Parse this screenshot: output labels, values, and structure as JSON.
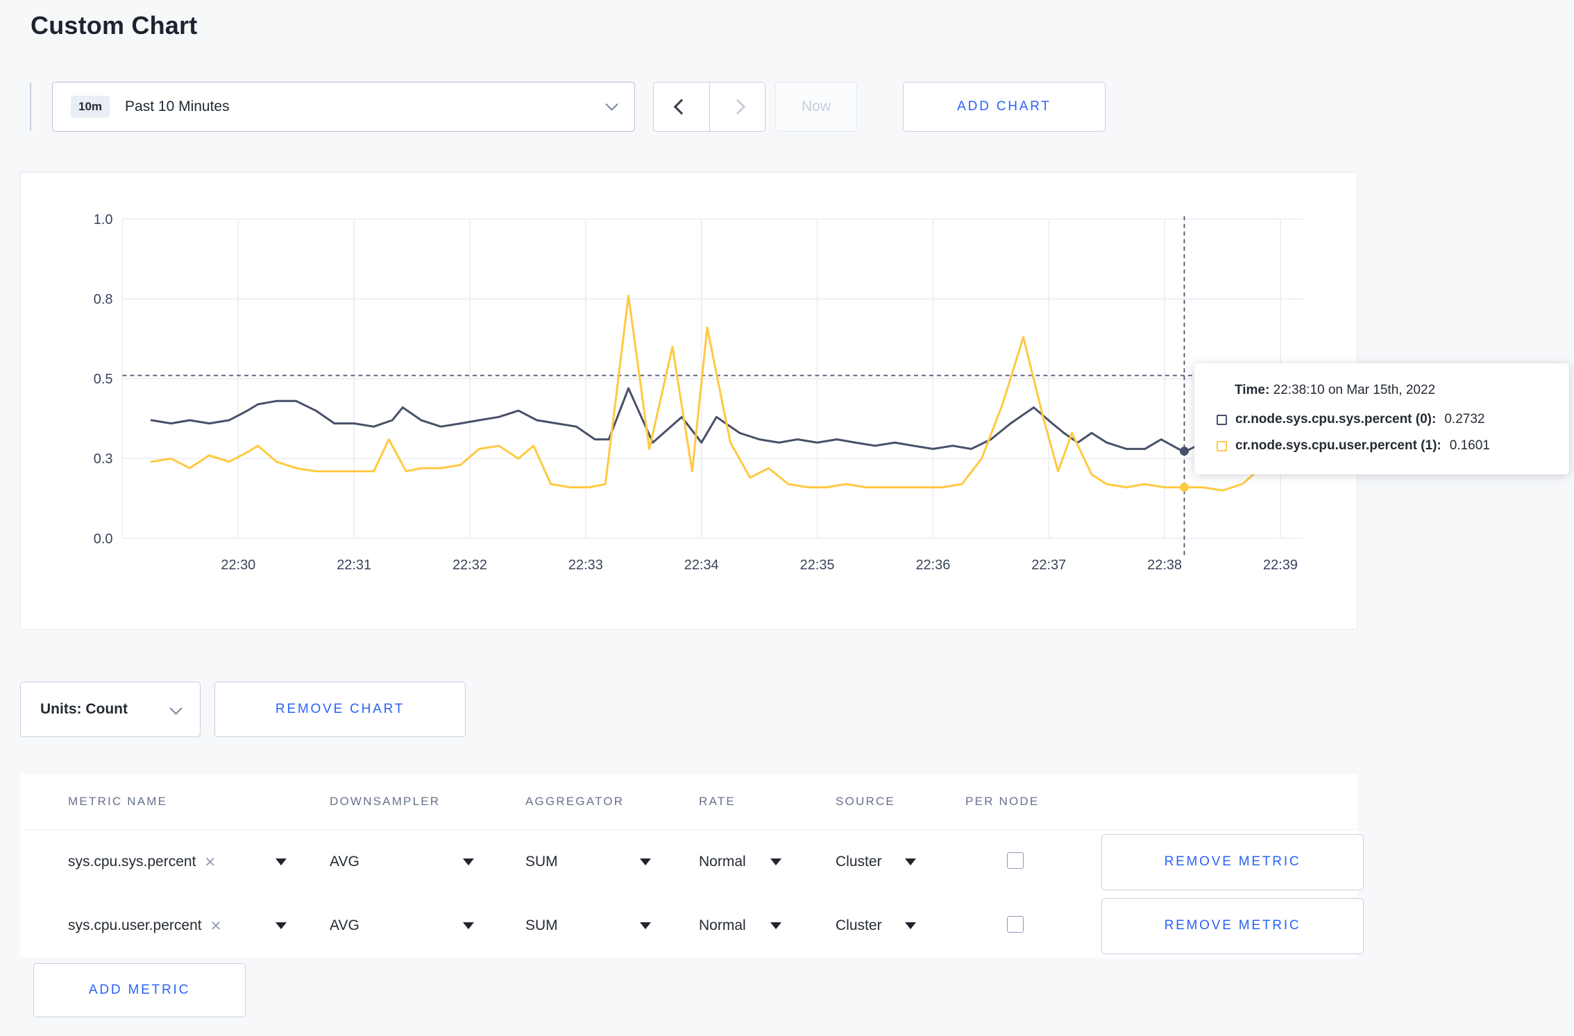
{
  "page": {
    "title": "Custom Chart"
  },
  "icons": {
    "clear": "✕"
  },
  "colors": {
    "accent_blue": "#2a62f5",
    "series_sys": "#475068",
    "series_user": "#ffc940",
    "page_bg": "#f7f8fa"
  },
  "toolbar": {
    "time_badge": "10m",
    "time_label": "Past 10 Minutes",
    "now_label": "Now",
    "add_chart_label": "ADD CHART"
  },
  "controls": {
    "units_label": "Units: Count",
    "remove_chart_label": "REMOVE CHART",
    "add_metric_label": "ADD METRIC"
  },
  "tooltip": {
    "time_label": "Time:",
    "time_value": "22:38:10 on Mar 15th, 2022",
    "rows": [
      {
        "name": "cr.node.sys.cpu.sys.percent (0):",
        "value": "0.2732"
      },
      {
        "name": "cr.node.sys.cpu.user.percent (1):",
        "value": "0.1601"
      }
    ]
  },
  "table": {
    "headers": [
      "METRIC NAME",
      "DOWNSAMPLER",
      "AGGREGATOR",
      "RATE",
      "SOURCE",
      "PER NODE"
    ],
    "rows": [
      {
        "metric": "sys.cpu.sys.percent",
        "downsampler": "AVG",
        "aggregator": "SUM",
        "rate": "Normal",
        "source": "Cluster",
        "per_node_checked": false,
        "remove_label": "REMOVE METRIC"
      },
      {
        "metric": "sys.cpu.user.percent",
        "downsampler": "AVG",
        "aggregator": "SUM",
        "rate": "Normal",
        "source": "Cluster",
        "per_node_checked": false,
        "remove_label": "REMOVE METRIC"
      }
    ]
  },
  "chart_data": {
    "type": "line",
    "title": "",
    "xlabel": "",
    "ylabel": "",
    "x_unit": "minutes since 22:29:00",
    "x_domain": [
      0,
      10.2
    ],
    "y_domain": [
      0,
      1
    ],
    "grid": true,
    "legend_position": "hover-tooltip",
    "x_ticks": [
      {
        "x": 1,
        "label": "22:30"
      },
      {
        "x": 2,
        "label": "22:31"
      },
      {
        "x": 3,
        "label": "22:32"
      },
      {
        "x": 4,
        "label": "22:33"
      },
      {
        "x": 5,
        "label": "22:34"
      },
      {
        "x": 6,
        "label": "22:35"
      },
      {
        "x": 7,
        "label": "22:36"
      },
      {
        "x": 8,
        "label": "22:37"
      },
      {
        "x": 9,
        "label": "22:38"
      },
      {
        "x": 10,
        "label": "22:39"
      }
    ],
    "y_ticks": [
      {
        "v": 0,
        "label": "0.0"
      },
      {
        "v": 0.25,
        "label": "0.3"
      },
      {
        "v": 0.5,
        "label": "0.5"
      },
      {
        "v": 0.75,
        "label": "0.8"
      },
      {
        "v": 1,
        "label": "1.0"
      }
    ],
    "series": [
      {
        "name": "cr.node.sys.cpu.sys.percent",
        "color": "#475068",
        "points": [
          [
            0.25,
            0.37
          ],
          [
            0.42,
            0.36
          ],
          [
            0.58,
            0.37
          ],
          [
            0.75,
            0.36
          ],
          [
            0.92,
            0.37
          ],
          [
            1.08,
            0.4
          ],
          [
            1.17,
            0.42
          ],
          [
            1.33,
            0.43
          ],
          [
            1.5,
            0.43
          ],
          [
            1.67,
            0.4
          ],
          [
            1.83,
            0.36
          ],
          [
            2.0,
            0.36
          ],
          [
            2.17,
            0.35
          ],
          [
            2.33,
            0.37
          ],
          [
            2.42,
            0.41
          ],
          [
            2.58,
            0.37
          ],
          [
            2.75,
            0.35
          ],
          [
            2.92,
            0.36
          ],
          [
            3.08,
            0.37
          ],
          [
            3.25,
            0.38
          ],
          [
            3.42,
            0.4
          ],
          [
            3.58,
            0.37
          ],
          [
            3.75,
            0.36
          ],
          [
            3.92,
            0.35
          ],
          [
            4.08,
            0.31
          ],
          [
            4.2,
            0.31
          ],
          [
            4.37,
            0.47
          ],
          [
            4.58,
            0.3
          ],
          [
            4.83,
            0.38
          ],
          [
            5.0,
            0.3
          ],
          [
            5.13,
            0.38
          ],
          [
            5.33,
            0.33
          ],
          [
            5.5,
            0.31
          ],
          [
            5.67,
            0.3
          ],
          [
            5.83,
            0.31
          ],
          [
            6.0,
            0.3
          ],
          [
            6.17,
            0.31
          ],
          [
            6.33,
            0.3
          ],
          [
            6.5,
            0.29
          ],
          [
            6.67,
            0.3
          ],
          [
            6.83,
            0.29
          ],
          [
            7.0,
            0.28
          ],
          [
            7.17,
            0.29
          ],
          [
            7.33,
            0.28
          ],
          [
            7.5,
            0.31
          ],
          [
            7.67,
            0.36
          ],
          [
            7.87,
            0.41
          ],
          [
            8.03,
            0.36
          ],
          [
            8.13,
            0.33
          ],
          [
            8.25,
            0.3
          ],
          [
            8.37,
            0.33
          ],
          [
            8.5,
            0.3
          ],
          [
            8.67,
            0.28
          ],
          [
            8.83,
            0.28
          ],
          [
            8.97,
            0.31
          ],
          [
            9.17,
            0.27
          ],
          [
            9.33,
            0.3
          ],
          [
            9.5,
            0.3
          ],
          [
            9.67,
            0.29
          ],
          [
            9.83,
            0.3
          ],
          [
            10.03,
            0.31
          ]
        ]
      },
      {
        "name": "cr.node.sys.cpu.user.percent",
        "color": "#ffc940",
        "points": [
          [
            0.25,
            0.24
          ],
          [
            0.42,
            0.25
          ],
          [
            0.58,
            0.22
          ],
          [
            0.75,
            0.26
          ],
          [
            0.92,
            0.24
          ],
          [
            1.08,
            0.27
          ],
          [
            1.17,
            0.29
          ],
          [
            1.33,
            0.24
          ],
          [
            1.5,
            0.22
          ],
          [
            1.67,
            0.21
          ],
          [
            1.83,
            0.21
          ],
          [
            2.0,
            0.21
          ],
          [
            2.17,
            0.21
          ],
          [
            2.3,
            0.31
          ],
          [
            2.45,
            0.21
          ],
          [
            2.58,
            0.22
          ],
          [
            2.75,
            0.22
          ],
          [
            2.92,
            0.23
          ],
          [
            3.08,
            0.28
          ],
          [
            3.25,
            0.29
          ],
          [
            3.42,
            0.25
          ],
          [
            3.55,
            0.29
          ],
          [
            3.7,
            0.17
          ],
          [
            3.87,
            0.16
          ],
          [
            4.03,
            0.16
          ],
          [
            4.17,
            0.17
          ],
          [
            4.37,
            0.76
          ],
          [
            4.55,
            0.28
          ],
          [
            4.75,
            0.6
          ],
          [
            4.92,
            0.21
          ],
          [
            5.05,
            0.66
          ],
          [
            5.25,
            0.3
          ],
          [
            5.42,
            0.19
          ],
          [
            5.58,
            0.22
          ],
          [
            5.75,
            0.17
          ],
          [
            5.92,
            0.16
          ],
          [
            6.08,
            0.16
          ],
          [
            6.25,
            0.17
          ],
          [
            6.42,
            0.16
          ],
          [
            6.58,
            0.16
          ],
          [
            6.75,
            0.16
          ],
          [
            6.92,
            0.16
          ],
          [
            7.08,
            0.16
          ],
          [
            7.25,
            0.17
          ],
          [
            7.42,
            0.25
          ],
          [
            7.6,
            0.42
          ],
          [
            7.78,
            0.63
          ],
          [
            7.95,
            0.38
          ],
          [
            8.08,
            0.21
          ],
          [
            8.2,
            0.33
          ],
          [
            8.37,
            0.2
          ],
          [
            8.5,
            0.17
          ],
          [
            8.67,
            0.16
          ],
          [
            8.83,
            0.17
          ],
          [
            9.0,
            0.16
          ],
          [
            9.17,
            0.16
          ],
          [
            9.33,
            0.16
          ],
          [
            9.5,
            0.15
          ],
          [
            9.67,
            0.17
          ],
          [
            9.83,
            0.22
          ],
          [
            9.95,
            0.28
          ],
          [
            10.03,
            0.26
          ]
        ]
      }
    ],
    "crosshair": {
      "x": 9.17,
      "x_time": "22:38:10",
      "y_value": 0.51
    },
    "hover_points": [
      {
        "series": "cr.node.sys.cpu.sys.percent",
        "x": 9.17,
        "value": 0.2732
      },
      {
        "series": "cr.node.sys.cpu.user.percent",
        "x": 9.17,
        "value": 0.1601
      }
    ]
  }
}
